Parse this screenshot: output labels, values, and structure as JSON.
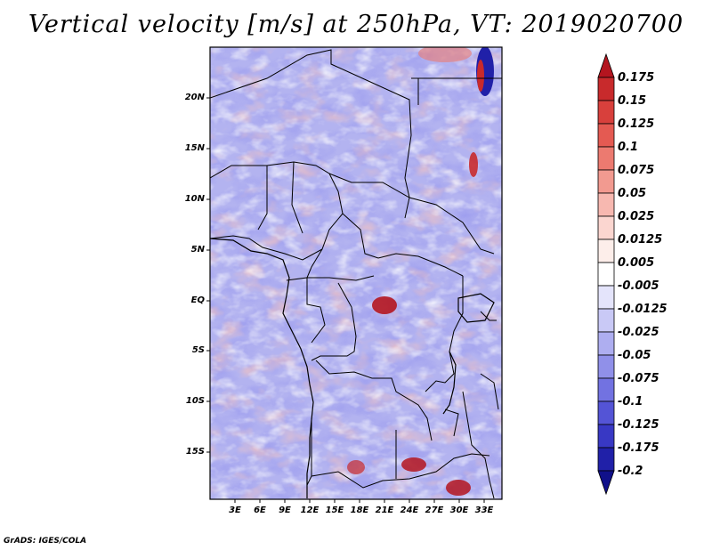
{
  "title": "Vertical velocity [m/s] at 250hPa, VT: 2019020700",
  "credit": "GrADS: IGES/COLA",
  "lat_labels": [
    "20N",
    "15N",
    "10N",
    "5N",
    "EQ",
    "5S",
    "10S",
    "15S"
  ],
  "lon_labels": [
    "3E",
    "6E",
    "9E",
    "12E",
    "15E",
    "18E",
    "21E",
    "24E",
    "27E",
    "30E",
    "33E"
  ],
  "colorbar": {
    "levels": [
      "0.175",
      "0.15",
      "0.125",
      "0.1",
      "0.075",
      "0.05",
      "0.025",
      "0.0125",
      "0.005",
      "-0.005",
      "-0.0125",
      "-0.025",
      "-0.05",
      "-0.075",
      "-0.1",
      "-0.125",
      "-0.175",
      "-0.2"
    ],
    "colors": [
      "#b4151f",
      "#c82a2c",
      "#d8403c",
      "#e45a52",
      "#ec7a70",
      "#f29a90",
      "#f7b8b0",
      "#fbd6d0",
      "#fdeeea",
      "#ffffff",
      "#e4e4fb",
      "#c9c9f6",
      "#aeaef0",
      "#9090e9",
      "#7272e1",
      "#5454d6",
      "#3838c4",
      "#2020a8",
      "#10108a"
    ]
  },
  "map": {
    "lon_range": [
      0,
      35
    ],
    "lat_range": [
      -20,
      25
    ],
    "background_color": "#b3b3f0"
  }
}
